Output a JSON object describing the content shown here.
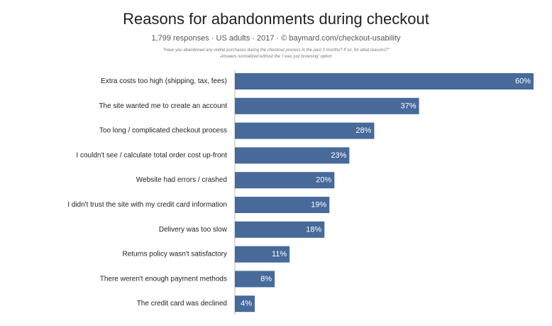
{
  "title": "Reasons for abandonments during checkout",
  "subtitle": "1,799 responses  ·  US adults  ·  2017  ·  © baymard.com/checkout-usability",
  "note_lines": [
    "\"Have you abandoned any online purchases during the checkout process in the past 3 months? If so, for what reasons?\"",
    "Answers normalized without the 'I was just browsing' option"
  ],
  "colors": {
    "bar": "#476a9b",
    "axis": "#bbbbbb"
  },
  "chart_data": {
    "type": "bar",
    "orientation": "horizontal",
    "title": "Reasons for abandonments during checkout",
    "xlabel": "",
    "ylabel": "",
    "xlim": [
      0,
      60
    ],
    "grid": false,
    "categories": [
      "Extra costs too high (shipping, tax, fees)",
      "The site wanted me to create an account",
      "Too long / complicated checkout process",
      "I couldn't see / calculate total order cost up-front",
      "Website had errors / crashed",
      "I didn't trust the site with my credit card information",
      "Delivery was too slow",
      "Returns policy wasn't satisfactory",
      "There weren't enough payment methods",
      "The credit card was declined"
    ],
    "values": [
      60,
      37,
      28,
      23,
      20,
      19,
      18,
      11,
      8,
      4
    ],
    "value_labels": [
      "60%",
      "37%",
      "28%",
      "23%",
      "20%",
      "19%",
      "18%",
      "11%",
      "8%",
      "4%"
    ]
  }
}
